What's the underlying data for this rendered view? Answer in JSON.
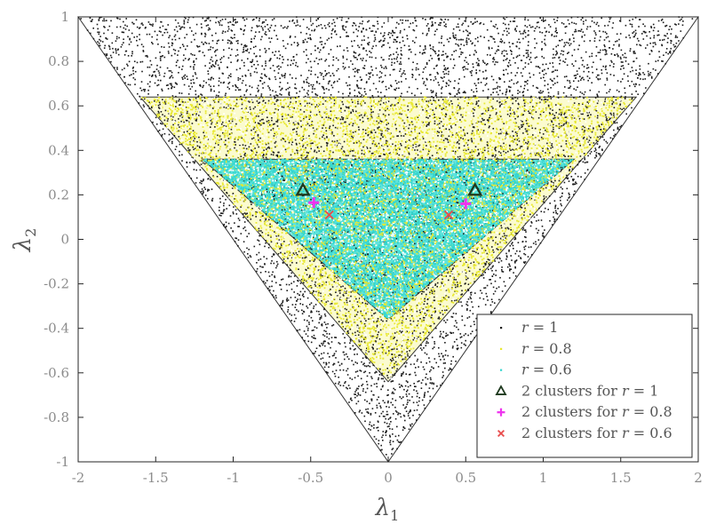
{
  "chart_data": {
    "type": "scatter",
    "xlabel": "λ",
    "xlabel_sub": "1",
    "ylabel": "λ",
    "ylabel_sub": "2",
    "xlim": [
      -2,
      2
    ],
    "ylim": [
      -1,
      1
    ],
    "xticks": [
      "-2",
      "-1.5",
      "-1",
      "-0.5",
      "0",
      "0.5",
      "1",
      "1.5",
      "2"
    ],
    "yticks": [
      "-1",
      "-0.8",
      "-0.6",
      "-0.4",
      "-0.2",
      "0",
      "0.2",
      "0.4",
      "0.6",
      "0.8",
      "1"
    ],
    "grid": false,
    "legend_position": "bottom-right",
    "regions": [
      {
        "r": 1,
        "vertices": [
          [
            -2,
            1
          ],
          [
            2,
            1
          ],
          [
            0,
            -1
          ]
        ],
        "color": "#1a1a1a"
      },
      {
        "r": 0.8,
        "vertices": [
          [
            -1.6,
            0.64
          ],
          [
            1.6,
            0.64
          ],
          [
            0,
            -0.64
          ]
        ],
        "color": "#e8e830"
      },
      {
        "r": 0.6,
        "vertices": [
          [
            -1.2,
            0.36
          ],
          [
            1.2,
            0.36
          ],
          [
            0,
            -0.36
          ]
        ],
        "color": "#34d6cf"
      }
    ],
    "series": [
      {
        "name": "r = 1",
        "marker": "dot",
        "color": "#1a1a1a",
        "points": [
          [
            -2,
            1
          ],
          [
            2,
            1
          ],
          [
            0,
            -1
          ]
        ]
      },
      {
        "name": "r = 0.8",
        "marker": "dot",
        "color": "#e8e830",
        "points": [
          [
            -1.6,
            0.64
          ],
          [
            1.6,
            0.64
          ],
          [
            0,
            -0.64
          ]
        ]
      },
      {
        "name": "r = 0.6",
        "marker": "dot",
        "color": "#34d6cf",
        "points": [
          [
            -1.2,
            0.36
          ],
          [
            1.2,
            0.36
          ],
          [
            0,
            -0.36
          ]
        ]
      },
      {
        "name": "2 clusters for r = 1",
        "marker": "triangle",
        "color": "#1f3a1f",
        "points": [
          [
            -0.55,
            0.22
          ],
          [
            0.56,
            0.22
          ]
        ]
      },
      {
        "name": "2 clusters for r = 0.8",
        "marker": "plus",
        "color": "#ee33ee",
        "points": [
          [
            -0.48,
            0.165
          ],
          [
            0.5,
            0.16
          ]
        ]
      },
      {
        "name": "2 clusters for r = 0.6",
        "marker": "cross",
        "color": "#e84a4a",
        "points": [
          [
            -0.38,
            0.11
          ],
          [
            0.39,
            0.11
          ]
        ]
      }
    ]
  }
}
